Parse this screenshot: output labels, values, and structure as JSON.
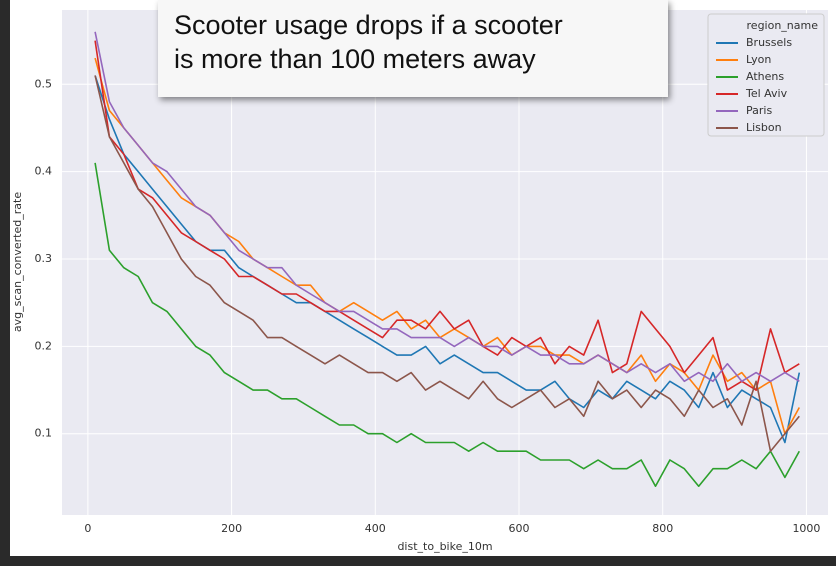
{
  "chart_data": {
    "type": "line",
    "annotation": [
      "Scooter usage drops if a scooter",
      "is more than 100 meters away"
    ],
    "xlabel": "dist_to_bike_10m",
    "ylabel": "avg_scan_converted_rate",
    "legend_title": "region_name",
    "legend": "upper right",
    "grid": true,
    "xlim": [
      -36,
      1030
    ],
    "xticks": [
      0,
      200,
      400,
      600,
      800,
      1000
    ],
    "ylim": [
      0.007,
      0.585
    ],
    "yticks": [
      0.1,
      0.2,
      0.3,
      0.4,
      0.5
    ],
    "x": [
      10,
      30,
      50,
      70,
      90,
      110,
      130,
      150,
      170,
      190,
      210,
      230,
      250,
      270,
      290,
      310,
      330,
      350,
      370,
      390,
      410,
      430,
      450,
      470,
      490,
      510,
      530,
      550,
      570,
      590,
      610,
      630,
      650,
      670,
      690,
      710,
      730,
      750,
      770,
      790,
      810,
      830,
      850,
      870,
      890,
      910,
      930,
      950,
      970,
      990
    ],
    "series": [
      {
        "name": "Brussels",
        "color": "#1f77b4",
        "values": [
          0.51,
          0.46,
          0.42,
          0.4,
          0.38,
          0.36,
          0.34,
          0.32,
          0.31,
          0.31,
          0.29,
          0.28,
          0.27,
          0.26,
          0.25,
          0.25,
          0.24,
          0.23,
          0.22,
          0.21,
          0.2,
          0.19,
          0.19,
          0.2,
          0.18,
          0.19,
          0.18,
          0.17,
          0.17,
          0.16,
          0.15,
          0.15,
          0.16,
          0.14,
          0.13,
          0.15,
          0.14,
          0.16,
          0.15,
          0.14,
          0.16,
          0.15,
          0.13,
          0.17,
          0.13,
          0.15,
          0.14,
          0.13,
          0.09,
          0.17
        ]
      },
      {
        "name": "Lyon",
        "color": "#ff7f0e",
        "values": [
          0.53,
          0.47,
          0.45,
          0.43,
          0.41,
          0.39,
          0.37,
          0.36,
          0.35,
          0.33,
          0.32,
          0.3,
          0.29,
          0.28,
          0.27,
          0.27,
          0.25,
          0.24,
          0.25,
          0.24,
          0.23,
          0.24,
          0.22,
          0.23,
          0.21,
          0.22,
          0.21,
          0.2,
          0.21,
          0.19,
          0.2,
          0.2,
          0.19,
          0.19,
          0.18,
          0.19,
          0.18,
          0.17,
          0.19,
          0.16,
          0.18,
          0.17,
          0.15,
          0.19,
          0.16,
          0.17,
          0.15,
          0.16,
          0.1,
          0.13
        ]
      },
      {
        "name": "Athens",
        "color": "#2ca02c",
        "values": [
          0.41,
          0.31,
          0.29,
          0.28,
          0.25,
          0.24,
          0.22,
          0.2,
          0.19,
          0.17,
          0.16,
          0.15,
          0.15,
          0.14,
          0.14,
          0.13,
          0.12,
          0.11,
          0.11,
          0.1,
          0.1,
          0.09,
          0.1,
          0.09,
          0.09,
          0.09,
          0.08,
          0.09,
          0.08,
          0.08,
          0.08,
          0.07,
          0.07,
          0.07,
          0.06,
          0.07,
          0.06,
          0.06,
          0.07,
          0.04,
          0.07,
          0.06,
          0.04,
          0.06,
          0.06,
          0.07,
          0.06,
          0.08,
          0.05,
          0.08
        ]
      },
      {
        "name": "Tel Aviv",
        "color": "#d62728",
        "values": [
          0.55,
          0.44,
          0.42,
          0.38,
          0.37,
          0.35,
          0.33,
          0.32,
          0.31,
          0.3,
          0.28,
          0.28,
          0.27,
          0.26,
          0.26,
          0.25,
          0.24,
          0.24,
          0.23,
          0.22,
          0.21,
          0.23,
          0.23,
          0.22,
          0.24,
          0.22,
          0.23,
          0.2,
          0.19,
          0.21,
          0.2,
          0.21,
          0.18,
          0.2,
          0.19,
          0.23,
          0.17,
          0.18,
          0.24,
          0.22,
          0.2,
          0.17,
          0.19,
          0.21,
          0.15,
          0.16,
          0.15,
          0.22,
          0.17,
          0.18
        ]
      },
      {
        "name": "Paris",
        "color": "#9467bd",
        "values": [
          0.56,
          0.48,
          0.45,
          0.43,
          0.41,
          0.4,
          0.38,
          0.36,
          0.35,
          0.33,
          0.31,
          0.3,
          0.29,
          0.29,
          0.27,
          0.26,
          0.25,
          0.24,
          0.24,
          0.23,
          0.22,
          0.22,
          0.21,
          0.21,
          0.21,
          0.2,
          0.21,
          0.2,
          0.2,
          0.19,
          0.2,
          0.19,
          0.19,
          0.18,
          0.18,
          0.19,
          0.18,
          0.17,
          0.18,
          0.17,
          0.18,
          0.16,
          0.17,
          0.16,
          0.18,
          0.16,
          0.17,
          0.16,
          0.17,
          0.16
        ]
      },
      {
        "name": "Lisbon",
        "color": "#8c564b",
        "values": [
          0.51,
          0.44,
          0.41,
          0.38,
          0.36,
          0.33,
          0.3,
          0.28,
          0.27,
          0.25,
          0.24,
          0.23,
          0.21,
          0.21,
          0.2,
          0.19,
          0.18,
          0.19,
          0.18,
          0.17,
          0.17,
          0.16,
          0.17,
          0.15,
          0.16,
          0.15,
          0.14,
          0.16,
          0.14,
          0.13,
          0.14,
          0.15,
          0.13,
          0.14,
          0.12,
          0.16,
          0.14,
          0.15,
          0.13,
          0.15,
          0.14,
          0.12,
          0.15,
          0.13,
          0.14,
          0.11,
          0.16,
          0.08,
          0.1,
          0.12
        ]
      }
    ]
  }
}
